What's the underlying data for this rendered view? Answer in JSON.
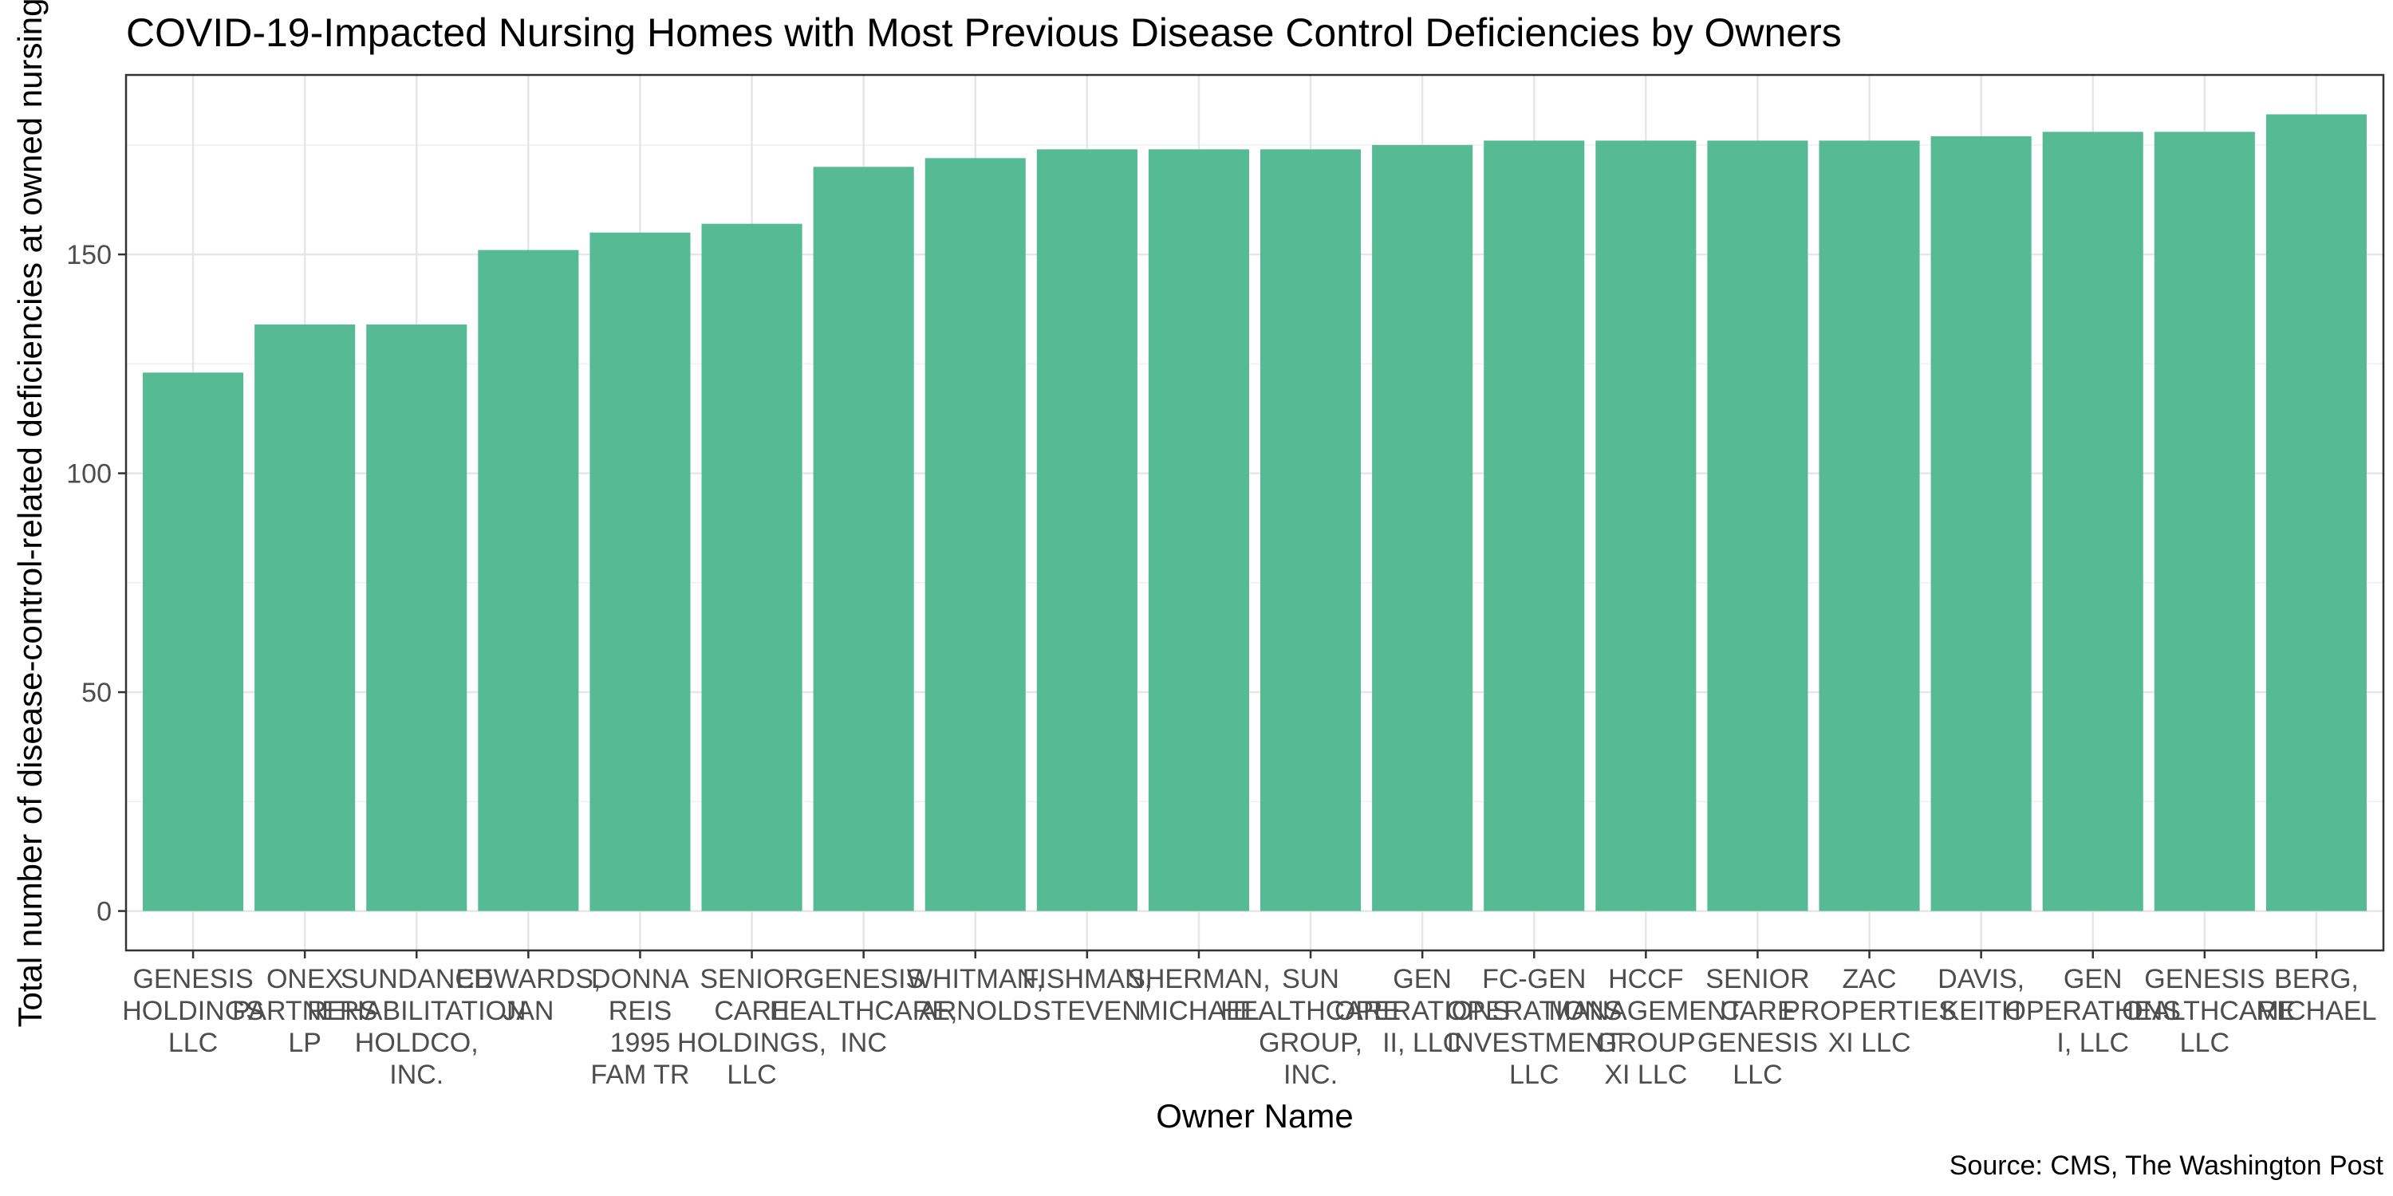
{
  "chart_data": {
    "type": "bar",
    "title": "COVID-19-Impacted Nursing Homes with Most Previous Disease Control Deficiencies by Owners",
    "xlabel": "Owner Name",
    "ylabel": "Total number of disease-control-related deficiencies at owned nursing",
    "caption": "Source: CMS, The Washington Post",
    "ylim": [
      -9,
      191
    ],
    "yticks": [
      0,
      50,
      100,
      150
    ],
    "grid": true,
    "bar_color": "#56BA94",
    "categories": [
      [
        "GENESIS",
        "HOLDINGS",
        "LLC"
      ],
      [
        "ONEX",
        "PARTNERS",
        "LP"
      ],
      [
        "SUNDANCE",
        "REHABILITATION",
        "HOLDCO,",
        "INC."
      ],
      [
        "EDWARDS,",
        "JAN"
      ],
      [
        "DONNA",
        "REIS",
        "1995",
        "FAM TR"
      ],
      [
        "SENIOR",
        "CARE",
        "HOLDINGS,",
        "LLC"
      ],
      [
        "GENESIS",
        "HEALTHCARE,",
        "INC"
      ],
      [
        "WHITMAN,",
        "ARNOLD"
      ],
      [
        "FISHMAN,",
        "STEVEN"
      ],
      [
        "SHERMAN,",
        "MICHAEL"
      ],
      [
        "SUN",
        "HEALTHCARE",
        "GROUP,",
        "INC."
      ],
      [
        "GEN",
        "OPERATIONS",
        "II, LLC"
      ],
      [
        "FC-GEN",
        "OPERATIONS",
        "INVESTMENT",
        "LLC"
      ],
      [
        "HCCF",
        "MANAGEMENT",
        "GROUP",
        "XI LLC"
      ],
      [
        "SENIOR",
        "CARE",
        "GENESIS",
        "LLC"
      ],
      [
        "ZAC",
        "PROPERTIES",
        "XI LLC"
      ],
      [
        "DAVIS,",
        "KEITH"
      ],
      [
        "GEN",
        "OPERATIONS",
        "I, LLC"
      ],
      [
        "GENESIS",
        "HEALTHCARE",
        "LLC"
      ],
      [
        "BERG,",
        "MICHAEL"
      ]
    ],
    "values": [
      123,
      134,
      134,
      151,
      155,
      157,
      170,
      172,
      174,
      174,
      174,
      175,
      176,
      176,
      176,
      176,
      177,
      178,
      178,
      182
    ]
  }
}
